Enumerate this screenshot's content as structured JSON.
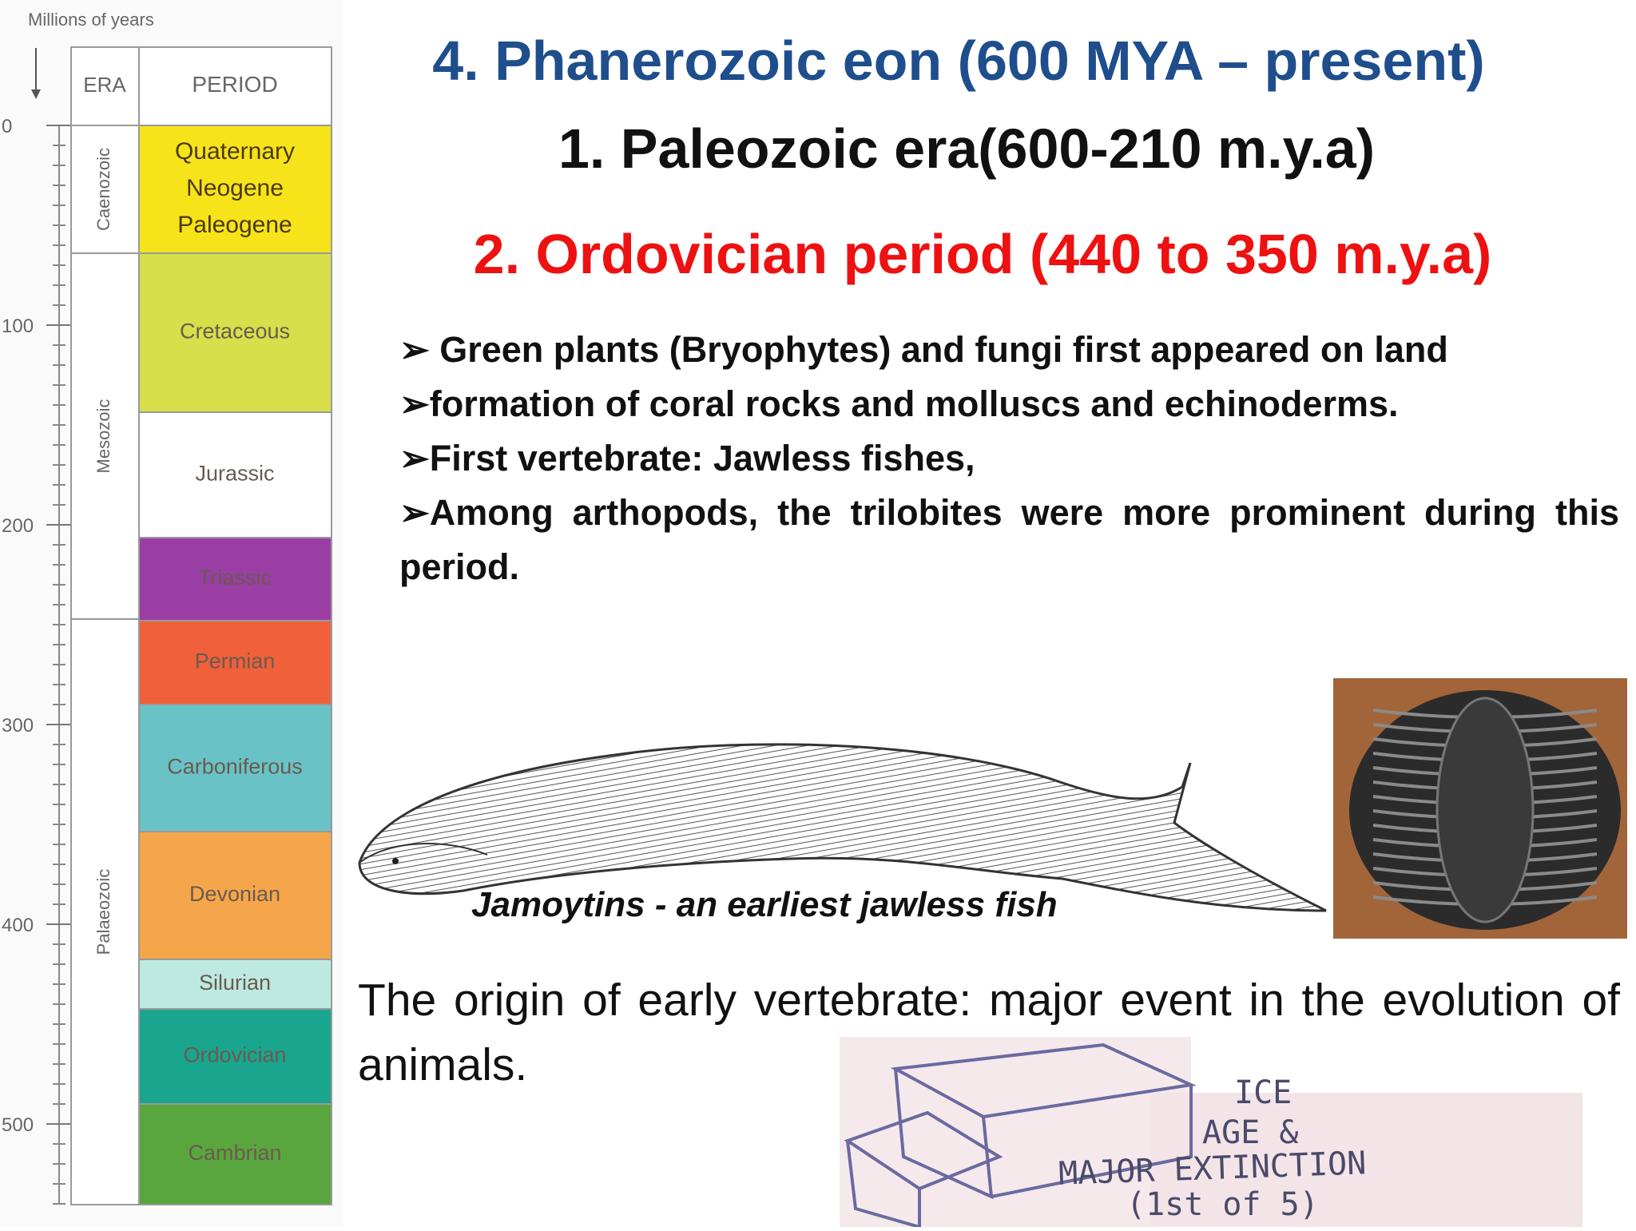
{
  "timescale": {
    "axis_label": "Millions of years",
    "era_header": "ERA",
    "period_header": "PERIOD",
    "ticks": [
      0,
      100,
      200,
      300,
      400,
      500
    ],
    "eras": [
      "Caenozoic",
      "Mesozoic",
      "Palaeozoic"
    ],
    "periods": [
      "Quaternary",
      "Neogene",
      "Paleogene",
      "Cretaceous",
      "Jurassic",
      "Triassic",
      "Permian",
      "Carboniferous",
      "Devonian",
      "Silurian",
      "Ordovician",
      "Cambrian"
    ]
  },
  "slide": {
    "title": "4. Phanerozoic eon (600 MYA – present)",
    "subtitle": "1. Paleozoic era(600-210 m.y.a)",
    "heading": "2. Ordovician period (440 to 350 m.y.a)",
    "bullets": [
      " Green plants (Bryophytes) and fungi first appeared on land",
      "formation of coral rocks and molluscs and echinoderms.",
      "First vertebrate:  Jawless  fishes,",
      "Among arthopods, the trilobites were more prominent during this period."
    ],
    "fish_caption": "Jamoytins - an earliest jawless fish",
    "paragraph": "The origin of early vertebrate: major event in the evolution of animals.",
    "ice_note": [
      "ICE",
      "AGE &",
      "MAJOR EXTINCTION",
      "(1st of 5)"
    ]
  }
}
